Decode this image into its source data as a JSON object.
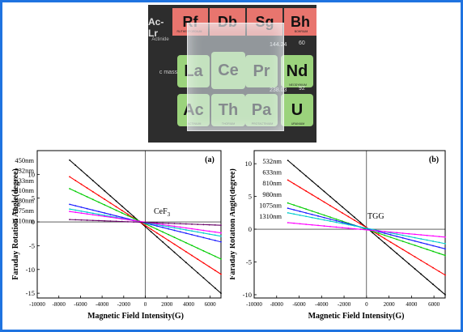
{
  "photo": {
    "tiles": [
      {
        "symbol": "Rf",
        "kind": "red"
      },
      {
        "symbol": "Db",
        "kind": "red"
      },
      {
        "symbol": "Sg",
        "kind": "red"
      },
      {
        "symbol": "Bh",
        "kind": "red"
      },
      {
        "symbol": "La",
        "kind": "green"
      },
      {
        "symbol": "Ce",
        "kind": "green"
      },
      {
        "symbol": "Pr",
        "kind": "green"
      },
      {
        "symbol": "Nd",
        "kind": "green"
      },
      {
        "symbol": "Ac",
        "kind": "green"
      },
      {
        "symbol": "Th",
        "kind": "green"
      },
      {
        "symbol": "Pa",
        "kind": "green"
      },
      {
        "symbol": "U",
        "kind": "green"
      }
    ],
    "side_label": "Ac-Lr",
    "side_small": "Actinide",
    "mass_label": "c mass",
    "number_labels": [
      "60",
      "144.24",
      "92",
      "238.03"
    ],
    "element_names": [
      "RUTHERFORDIUM",
      "BOHRIUM",
      "NEODYMIUM",
      "ACTINIUM",
      "THORIUM",
      "PROTACTINIUM",
      "URANIUM"
    ]
  },
  "chart_data": [
    {
      "type": "line",
      "panel_label": "(a)",
      "material": "CeF",
      "material_sub": "3",
      "xlabel": "Magnetic Field Intensity(G)",
      "ylabel": "Faraday Rotation Angle(degree)",
      "xlim": [
        -10000,
        7000
      ],
      "ylim": [
        -16,
        15
      ],
      "xticks": [
        -10000,
        -8000,
        -6000,
        -4000,
        -2000,
        0,
        2000,
        4000,
        6000
      ],
      "yticks": [
        -15,
        -10,
        -5,
        0,
        5,
        10
      ],
      "x_range": [
        -7000,
        7000
      ],
      "series": [
        {
          "name": "450nm",
          "color": "#000000",
          "values": [
            13.0,
            -15.0
          ]
        },
        {
          "name": "532nm",
          "color": "#ff0000",
          "values": [
            9.5,
            -11.0
          ]
        },
        {
          "name": "633nm",
          "color": "#00cc00",
          "values": [
            7.0,
            -7.8
          ]
        },
        {
          "name": "810nm",
          "color": "#1a1aff",
          "values": [
            3.7,
            -4.2
          ]
        },
        {
          "name": "980nm",
          "color": "#00cccc",
          "values": [
            2.7,
            -3.0
          ]
        },
        {
          "name": "1075nm",
          "color": "#ff00ff",
          "values": [
            2.2,
            -2.3
          ]
        },
        {
          "name": "1310nm",
          "color": "#660066",
          "values": [
            0.5,
            -0.7
          ]
        }
      ]
    },
    {
      "type": "line",
      "panel_label": "(b)",
      "material": "TGG",
      "xlabel": "Magnetic Field Intensity(G)",
      "ylabel": "Faraday Rotation Angle(degree)",
      "xlim": [
        -10000,
        7000
      ],
      "ylim": [
        -10.5,
        12
      ],
      "xticks": [
        -10000,
        -8000,
        -6000,
        -4000,
        -2000,
        0,
        2000,
        4000,
        6000
      ],
      "yticks": [
        -10,
        -5,
        0,
        5,
        10
      ],
      "x_range": [
        -7000,
        7000
      ],
      "series": [
        {
          "name": "532nm",
          "color": "#000000",
          "values": [
            10.5,
            -10.0
          ]
        },
        {
          "name": "633nm",
          "color": "#ff0000",
          "values": [
            7.5,
            -7.0
          ]
        },
        {
          "name": "810nm",
          "color": "#00cc00",
          "values": [
            4.0,
            -4.0
          ]
        },
        {
          "name": "980nm",
          "color": "#1a1aff",
          "values": [
            3.2,
            -3.0
          ]
        },
        {
          "name": "1075nm",
          "color": "#00cccc",
          "values": [
            2.5,
            -2.2
          ]
        },
        {
          "name": "1310nm",
          "color": "#ff00ff",
          "values": [
            1.0,
            -1.2
          ]
        }
      ]
    }
  ]
}
